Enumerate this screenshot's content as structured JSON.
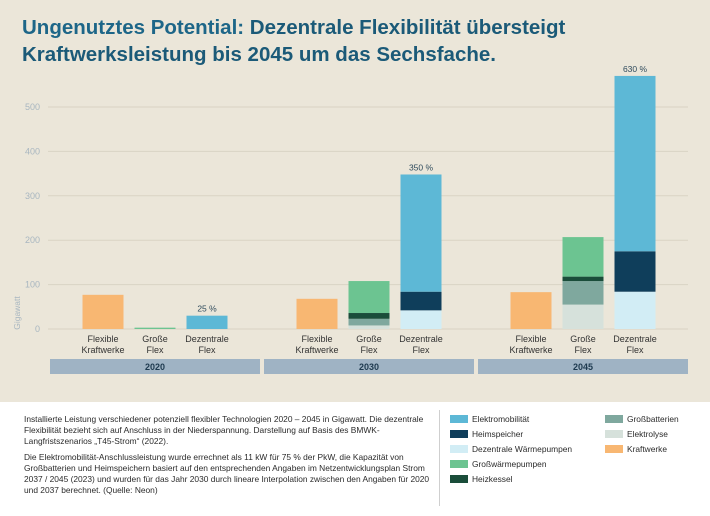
{
  "title": {
    "lead": "Ungenutztes Potential:",
    "rest": "Dezentrale Flexibilität übersteigt Kraftwerksleistung bis 2045 um das Sechsfache."
  },
  "colors": {
    "background": "#ebe6d9",
    "grid": "#d9d3c4",
    "axis_text": "#a8b6c0",
    "year_bar": "#9fb3c4",
    "Elektromobilität": "#5db8d6",
    "Heimspeicher": "#0f3e5b",
    "Dezentrale Wärmepumpen": "#d2edf5",
    "Großwärmepumpen": "#6cc491",
    "Heizkessel": "#1a4d3a",
    "Großbatterien": "#7fa89e",
    "Elektrolyse": "#d6e1db",
    "Kraftwerke": "#f8b772"
  },
  "chart_data": {
    "type": "bar",
    "stacked": true,
    "ylabel": "Gigawatt",
    "ylim": [
      0,
      500
    ],
    "yticks": [
      0,
      100,
      200,
      300,
      400,
      500
    ],
    "grid": true,
    "groups": [
      {
        "year": "2020",
        "bars": [
          {
            "label": "Flexible\nKraftwerke",
            "segments": [
              {
                "series": "Kraftwerke",
                "value": 77
              }
            ]
          },
          {
            "label": "Große\nFlex",
            "segments": [
              {
                "series": "Großwärmepumpen",
                "value": 3
              }
            ]
          },
          {
            "label": "Dezentrale\nFlex",
            "segments": [
              {
                "series": "Elektromobilität",
                "value": 30
              }
            ],
            "annotation": "25 %"
          }
        ]
      },
      {
        "year": "2030",
        "bars": [
          {
            "label": "Flexible\nKraftwerke",
            "segments": [
              {
                "series": "Kraftwerke",
                "value": 68
              }
            ]
          },
          {
            "label": "Große\nFlex",
            "segments": [
              {
                "series": "Elektrolyse",
                "value": 8
              },
              {
                "series": "Großbatterien",
                "value": 15
              },
              {
                "series": "Heizkessel",
                "value": 13
              },
              {
                "series": "Großwärmepumpen",
                "value": 72
              }
            ]
          },
          {
            "label": "Dezentrale\nFlex",
            "segments": [
              {
                "series": "Dezentrale Wärmepumpen",
                "value": 42
              },
              {
                "series": "Heimspeicher",
                "value": 42
              },
              {
                "series": "Elektromobilität",
                "value": 264
              }
            ],
            "annotation": "350 %"
          }
        ]
      },
      {
        "year": "2045",
        "bars": [
          {
            "label": "Flexible\nKraftwerke",
            "segments": [
              {
                "series": "Kraftwerke",
                "value": 83
              }
            ]
          },
          {
            "label": "Große\nFlex",
            "segments": [
              {
                "series": "Elektrolyse",
                "value": 55
              },
              {
                "series": "Großbatterien",
                "value": 53
              },
              {
                "series": "Heizkessel",
                "value": 10
              },
              {
                "series": "Großwärmepumpen",
                "value": 89
              }
            ]
          },
          {
            "label": "Dezentrale\nFlex",
            "segments": [
              {
                "series": "Dezentrale Wärmepumpen",
                "value": 84
              },
              {
                "series": "Heimspeicher",
                "value": 91
              },
              {
                "series": "Elektromobilität",
                "value": 395
              }
            ],
            "annotation": "630 %"
          }
        ]
      }
    ]
  },
  "description": {
    "p1": "Installierte Leistung verschiedener potenziell flexibler Technologien 2020 – 2045 in Gigawatt. Die dezentrale Flexibilität bezieht sich auf Anschluss in der Niederspannung. Darstellung auf Basis des BMWK-Langfristszenarios „T45-Strom“ (2022).",
    "p2": "Die Elektromobilität-Anschlussleistung wurde errechnet als 11 kW für 75 % der PkW, die Kapazität von Großbatterien und Heimspeichern basiert auf den entsprechenden Angaben im Netzentwicklungsplan Strom 2037 / 2045 (2023) und wurden für das Jahr 2030 durch lineare Interpolation zwischen den Angaben für 2020 und 2037 berechnet. (Quelle: Neon)"
  },
  "legend": [
    {
      "label": "Elektromobilität",
      "color": "#5db8d6"
    },
    {
      "label": "Heimspeicher",
      "color": "#0f3e5b"
    },
    {
      "label": "Dezentrale Wärmepumpen",
      "color": "#d2edf5"
    },
    {
      "label": "Großwärmepumpen",
      "color": "#6cc491"
    },
    {
      "label": "Heizkessel",
      "color": "#1a4d3a"
    },
    {
      "label": "Großbatterien",
      "color": "#7fa89e"
    },
    {
      "label": "Elektrolyse",
      "color": "#d6e1db"
    },
    {
      "label": "Kraftwerke",
      "color": "#f8b772"
    }
  ]
}
